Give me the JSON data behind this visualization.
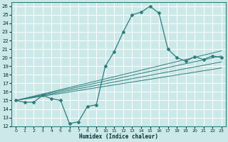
{
  "xlabel": "Humidex (Indice chaleur)",
  "bg_color": "#cce8e8",
  "grid_color": "#ffffff",
  "line_color": "#2d7d7d",
  "xlim": [
    -0.5,
    23.5
  ],
  "ylim": [
    12,
    26.5
  ],
  "yticks": [
    12,
    13,
    14,
    15,
    16,
    17,
    18,
    19,
    20,
    21,
    22,
    23,
    24,
    25,
    26
  ],
  "xticks": [
    0,
    1,
    2,
    3,
    4,
    5,
    6,
    7,
    8,
    9,
    10,
    11,
    12,
    13,
    14,
    15,
    16,
    17,
    18,
    19,
    20,
    21,
    22,
    23
  ],
  "main_x": [
    0,
    1,
    2,
    3,
    4,
    5,
    6,
    7,
    8,
    9,
    10,
    11,
    12,
    13,
    14,
    15,
    16,
    17,
    18,
    19,
    20,
    21,
    22,
    23
  ],
  "main_y": [
    15,
    14.8,
    14.8,
    15.6,
    15.2,
    15.0,
    12.3,
    12.5,
    14.3,
    14.5,
    19.0,
    20.7,
    23.0,
    25.0,
    25.3,
    26.0,
    25.2,
    21.0,
    20.0,
    19.6,
    20.1,
    19.8,
    20.2,
    20.0
  ],
  "trend1_x": [
    0,
    23
  ],
  "trend1_y": [
    15.0,
    20.8
  ],
  "trend2_x": [
    0,
    23
  ],
  "trend2_y": [
    15.0,
    20.2
  ],
  "trend3_x": [
    0,
    23
  ],
  "trend3_y": [
    15.0,
    19.5
  ],
  "trend4_x": [
    0,
    23
  ],
  "trend4_y": [
    15.0,
    18.8
  ]
}
